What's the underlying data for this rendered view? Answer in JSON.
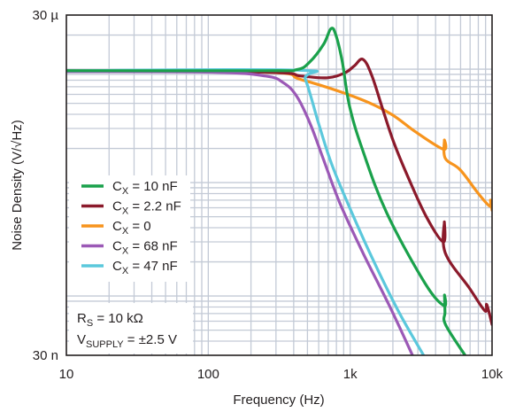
{
  "chart_data": {
    "type": "line",
    "title": "",
    "xlabel": "Frequency (Hz)",
    "ylabel": "Noise Density (V/√Hz)",
    "xscale": "log",
    "yscale": "log",
    "xlim": [
      10,
      10000
    ],
    "ylim": [
      3e-08,
      3e-05
    ],
    "grid": true,
    "x_tick_labels": [
      {
        "value": 10,
        "label": "10"
      },
      {
        "value": 100,
        "label": "100"
      },
      {
        "value": 1000,
        "label": "1k"
      },
      {
        "value": 10000,
        "label": "10k"
      }
    ],
    "y_tick_labels": [
      {
        "value": 3e-05,
        "label": "30 µ"
      },
      {
        "value": 3e-08,
        "label": "30 n"
      }
    ],
    "legend_position": "lower-left",
    "series": [
      {
        "name": "C_X = 10 nF",
        "label_main": "C",
        "label_sub": "X",
        "label_rest": " = 10 nF",
        "color": "#1aa14b",
        "points": [
          [
            10,
            9.7e-06
          ],
          [
            250,
            9.7e-06
          ],
          [
            420,
            9.9e-06
          ],
          [
            520,
            1.16e-05
          ],
          [
            650,
            1.66e-05
          ],
          [
            733,
            2.28e-05
          ],
          [
            795,
            1.98e-05
          ],
          [
            880,
            1.16e-05
          ],
          [
            990,
            4.7e-06
          ],
          [
            1230,
            1.9e-06
          ],
          [
            1810,
            5.4e-07
          ],
          [
            3360,
            1.3e-07
          ],
          [
            4590,
            8.2e-08
          ],
          [
            4620,
            1.02e-07
          ],
          [
            4660,
            7.2e-08
          ],
          [
            4700,
            5.6e-08
          ],
          [
            6450,
            3e-08
          ]
        ]
      },
      {
        "name": "C_X = 2.2 nF",
        "label_main": "C",
        "label_sub": "X",
        "label_rest": " = 2.2 nF",
        "color": "#8b1a2b",
        "points": [
          [
            10,
            9.7e-06
          ],
          [
            250,
            9.4e-06
          ],
          [
            450,
            8.7e-06
          ],
          [
            690,
            8.4e-06
          ],
          [
            920,
            9.3e-06
          ],
          [
            1070,
            1.07e-05
          ],
          [
            1230,
            1.22e-05
          ],
          [
            1420,
            8.8e-06
          ],
          [
            1710,
            4.3e-06
          ],
          [
            2020,
            2.3e-06
          ],
          [
            2540,
            1.14e-06
          ],
          [
            3470,
            4.9e-07
          ],
          [
            4540,
            3e-07
          ],
          [
            4610,
            4.5e-07
          ],
          [
            4680,
            2.4e-07
          ],
          [
            6900,
            1.18e-07
          ],
          [
            8900,
            7.4e-08
          ],
          [
            9180,
            8.4e-08
          ],
          [
            10000,
            5.6e-08
          ]
        ]
      },
      {
        "name": "C_X = 0",
        "label_main": "C",
        "label_sub": "X",
        "label_rest": " = 0",
        "color": "#f7941d",
        "points": [
          [
            10,
            9.7e-06
          ],
          [
            250,
            9.4e-06
          ],
          [
            450,
            8.1e-06
          ],
          [
            1070,
            5.7e-06
          ],
          [
            1890,
            4.1e-06
          ],
          [
            2890,
            2.8e-06
          ],
          [
            4540,
            1.97e-06
          ],
          [
            4610,
            2.37e-06
          ],
          [
            4680,
            1.64e-06
          ],
          [
            5950,
            1.3e-06
          ],
          [
            7950,
            8.1e-07
          ],
          [
            9620,
            6.2e-07
          ],
          [
            9750,
            7e-07
          ],
          [
            10000,
            5.7e-07
          ]
        ]
      },
      {
        "name": "C_X = 68 nF",
        "label_main": "C",
        "label_sub": "X",
        "label_rest": " = 68 nF",
        "color": "#9b59b6",
        "points": [
          [
            10,
            9.5e-06
          ],
          [
            107,
            9.4e-06
          ],
          [
            254,
            8.7e-06
          ],
          [
            338,
            7.6e-06
          ],
          [
            419,
            5.8e-06
          ],
          [
            523,
            3.3e-06
          ],
          [
            648,
            1.6e-06
          ],
          [
            846,
            6.6e-07
          ],
          [
            1230,
            2.4e-07
          ],
          [
            1890,
            8.2e-08
          ],
          [
            2750,
            3e-08
          ]
        ]
      },
      {
        "name": "C_X = 47 nF",
        "label_main": "C",
        "label_sub": "X",
        "label_rest": " = 47 nF",
        "color": "#5bc8dc",
        "points": [
          [
            10,
            9.7e-06
          ],
          [
            419,
            9.8e-06
          ],
          [
            484,
            8.1e-06
          ],
          [
            600,
            3.3e-06
          ],
          [
            740,
            1.46e-06
          ],
          [
            965,
            6.5e-07
          ],
          [
            1420,
            2.2e-07
          ],
          [
            2170,
            7.5e-08
          ],
          [
            3290,
            3e-08
          ]
        ]
      }
    ],
    "annotations": [
      {
        "main": "R",
        "sub": "S",
        "rest": " = 10 kΩ"
      },
      {
        "main": "V",
        "sub": "SUPPLY",
        "rest": " = ±2.5 V"
      }
    ]
  }
}
